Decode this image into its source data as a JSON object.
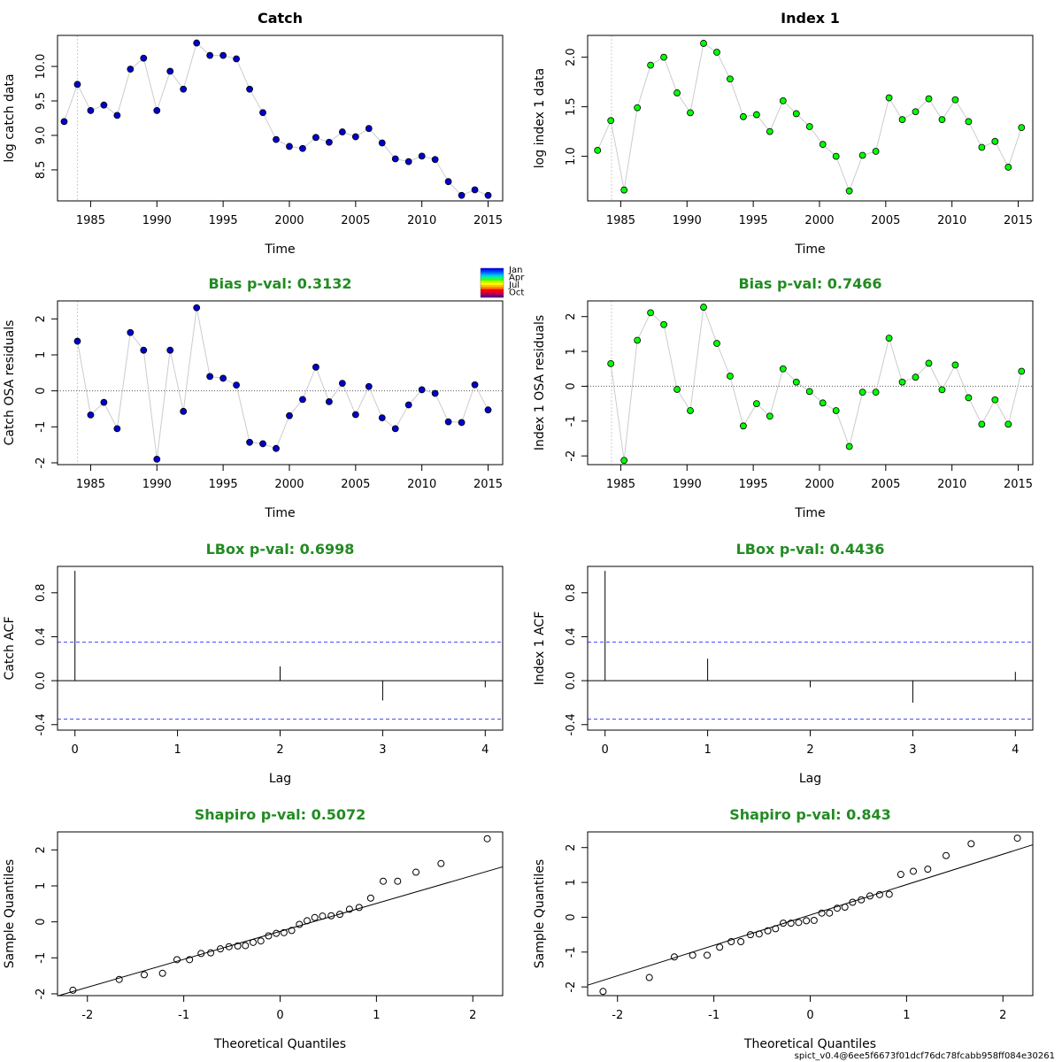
{
  "footer": "spict_v0.4@6ee5f6673f01dcf76dc78fcabb958ff084e30261",
  "month_legend": {
    "labels": [
      "Jan",
      "Apr",
      "Jul",
      "Oct"
    ],
    "colors": [
      "#0000ff",
      "#0040ff",
      "#0080ff",
      "#00c0ff",
      "#00ff80",
      "#40ff00",
      "#c0ff00",
      "#ffff00",
      "#ffc000",
      "#ff8000",
      "#ff0000",
      "#e00030",
      "#a00060",
      "#600080"
    ]
  },
  "chart_data": [
    {
      "id": "catch-data",
      "type": "scatter",
      "title": "Catch",
      "xlabel": "Time",
      "ylabel": "log catch data",
      "xlim": [
        1982.5,
        2016.1
      ],
      "ylim": [
        8.05,
        10.45
      ],
      "xticks": [
        1985,
        1990,
        1995,
        2000,
        2005,
        2010,
        2015
      ],
      "yticks": [
        8.5,
        9.0,
        9.5,
        10.0
      ],
      "ytick_labels": [
        "8.5",
        "9.0",
        "9.5",
        "10.0"
      ],
      "vline": 1984,
      "point_color": "#0000cd",
      "x": [
        1983,
        1984,
        1985,
        1986,
        1987,
        1988,
        1989,
        1990,
        1991,
        1992,
        1993,
        1994,
        1995,
        1996,
        1997,
        1998,
        1999,
        2000,
        2001,
        2002,
        2003,
        2004,
        2005,
        2006,
        2007,
        2008,
        2009,
        2010,
        2011,
        2012,
        2013,
        2014,
        2015
      ],
      "y": [
        9.2,
        9.74,
        9.36,
        9.44,
        9.29,
        9.96,
        10.12,
        9.36,
        9.93,
        9.67,
        10.34,
        10.16,
        10.16,
        10.11,
        9.67,
        9.33,
        8.94,
        8.84,
        8.81,
        8.97,
        8.9,
        9.05,
        8.98,
        9.1,
        8.89,
        8.66,
        8.62,
        8.7,
        8.65,
        8.33,
        8.13,
        8.21,
        8.13
      ]
    },
    {
      "id": "index1-data",
      "type": "scatter",
      "title": "Index 1",
      "xlabel": "Time",
      "ylabel": "log index 1 data",
      "xlim": [
        1982.5,
        2016.1
      ],
      "ylim": [
        0.55,
        2.22
      ],
      "xticks": [
        1985,
        1990,
        1995,
        2000,
        2005,
        2010,
        2015
      ],
      "yticks": [
        1.0,
        1.5,
        2.0
      ],
      "ytick_labels": [
        "1.0",
        "1.5",
        "2.0"
      ],
      "vline": 1984.3,
      "point_color": "#00ff00",
      "x": [
        1983.25,
        1984.25,
        1985.25,
        1986.25,
        1987.25,
        1988.25,
        1989.25,
        1990.25,
        1991.25,
        1992.25,
        1993.25,
        1994.25,
        1995.25,
        1996.25,
        1997.25,
        1998.25,
        1999.25,
        2000.25,
        2001.25,
        2002.25,
        2003.25,
        2004.25,
        2005.25,
        2006.25,
        2007.25,
        2008.25,
        2009.25,
        2010.25,
        2011.25,
        2012.25,
        2013.25,
        2014.25,
        2015.25
      ],
      "y": [
        1.06,
        1.36,
        0.66,
        1.49,
        1.92,
        2.0,
        1.64,
        1.44,
        2.14,
        2.05,
        1.78,
        1.4,
        1.42,
        1.25,
        1.56,
        1.43,
        1.3,
        1.12,
        1.0,
        0.65,
        1.01,
        1.05,
        1.59,
        1.37,
        1.45,
        1.58,
        1.37,
        1.57,
        1.35,
        1.09,
        1.15,
        0.89,
        1.29
      ]
    },
    {
      "id": "catch-osa",
      "type": "scatter",
      "title": "Bias p-val: 0.3132",
      "xlabel": "Time",
      "ylabel": "Catch OSA residuals",
      "xlim": [
        1982.5,
        2016.1
      ],
      "ylim": [
        -2.05,
        2.5
      ],
      "xticks": [
        1985,
        1990,
        1995,
        2000,
        2005,
        2010,
        2015
      ],
      "yticks": [
        -2,
        -1,
        0,
        1,
        2
      ],
      "ytick_labels": [
        "-2",
        "-1",
        "0",
        "1",
        "2"
      ],
      "vline": 1984,
      "hline": 0,
      "point_color": "#0000cd",
      "x": [
        1984,
        1985,
        1986,
        1987,
        1988,
        1989,
        1990,
        1991,
        1992,
        1993,
        1994,
        1995,
        1996,
        1997,
        1998,
        1999,
        2000,
        2001,
        2002,
        2003,
        2004,
        2005,
        2006,
        2007,
        2008,
        2009,
        2010,
        2011,
        2012,
        2013,
        2014,
        2015
      ],
      "y": [
        1.38,
        -0.67,
        -0.32,
        -1.05,
        1.62,
        1.13,
        -1.9,
        1.13,
        -0.57,
        2.31,
        0.4,
        0.35,
        0.16,
        -1.43,
        -1.47,
        -1.6,
        -0.69,
        -0.24,
        0.66,
        -0.3,
        0.21,
        -0.66,
        0.12,
        -0.75,
        -1.05,
        -0.39,
        0.03,
        -0.07,
        -0.86,
        -0.88,
        0.17,
        -0.53
      ]
    },
    {
      "id": "index1-osa",
      "type": "scatter",
      "title": "Bias p-val: 0.7466",
      "xlabel": "Time",
      "ylabel": "Index 1 OSA residuals",
      "xlim": [
        1982.5,
        2016.1
      ],
      "ylim": [
        -2.25,
        2.45
      ],
      "xticks": [
        1985,
        1990,
        1995,
        2000,
        2005,
        2010,
        2015
      ],
      "yticks": [
        -2,
        -1,
        0,
        1,
        2
      ],
      "ytick_labels": [
        "-2",
        "-1",
        "0",
        "1",
        "2"
      ],
      "vline": 1984.3,
      "hline": 0,
      "point_color": "#00ff00",
      "x": [
        1984.25,
        1985.25,
        1986.25,
        1987.25,
        1988.25,
        1989.25,
        1990.25,
        1991.25,
        1992.25,
        1993.25,
        1994.25,
        1995.25,
        1996.25,
        1997.25,
        1998.25,
        1999.25,
        2000.25,
        2001.25,
        2002.25,
        2003.25,
        2004.25,
        2005.25,
        2006.25,
        2007.25,
        2008.25,
        2009.25,
        2010.25,
        2011.25,
        2012.25,
        2013.25,
        2014.25,
        2015.25
      ],
      "y": [
        0.65,
        -2.13,
        1.32,
        2.11,
        1.77,
        -0.09,
        -0.7,
        2.27,
        1.23,
        0.29,
        -1.14,
        -0.5,
        -0.86,
        0.5,
        0.12,
        -0.15,
        -0.48,
        -0.7,
        -1.73,
        -0.17,
        -0.17,
        1.38,
        0.12,
        0.26,
        0.66,
        -0.1,
        0.61,
        -0.33,
        -1.09,
        -0.39,
        -1.09,
        0.43
      ]
    },
    {
      "id": "catch-acf",
      "type": "bar",
      "title": "LBox p-val: 0.6998",
      "xlabel": "Lag",
      "ylabel": "Catch ACF",
      "xlim": [
        -0.17,
        4.17
      ],
      "ylim": [
        -0.45,
        1.04
      ],
      "xticks": [
        0,
        1,
        2,
        3,
        4
      ],
      "yticks": [
        -0.4,
        0.0,
        0.4,
        0.8
      ],
      "ytick_labels": [
        "-0.4",
        "0.0",
        "0.4",
        "0.8"
      ],
      "conf_band": 0.35,
      "lags": [
        0,
        1,
        2,
        3,
        4
      ],
      "values": [
        1.0,
        0.0,
        0.13,
        -0.18,
        -0.06
      ]
    },
    {
      "id": "index1-acf",
      "type": "bar",
      "title": "LBox p-val: 0.4436",
      "xlabel": "Lag",
      "ylabel": "Index 1 ACF",
      "xlim": [
        -0.17,
        4.17
      ],
      "ylim": [
        -0.45,
        1.04
      ],
      "xticks": [
        0,
        1,
        2,
        3,
        4
      ],
      "yticks": [
        -0.4,
        0.0,
        0.4,
        0.8
      ],
      "ytick_labels": [
        "-0.4",
        "0.0",
        "0.4",
        "0.8"
      ],
      "conf_band": 0.35,
      "lags": [
        0,
        1,
        2,
        3,
        4
      ],
      "values": [
        1.0,
        0.2,
        -0.06,
        -0.2,
        0.08
      ]
    },
    {
      "id": "catch-qq",
      "type": "scatter",
      "title": "Shapiro p-val: 0.5072",
      "xlabel": "Theoretical Quantiles",
      "ylabel": "Sample Quantiles",
      "xlim": [
        -2.31,
        2.31
      ],
      "ylim": [
        -2.05,
        2.5
      ],
      "xticks": [
        -2,
        -1,
        0,
        1,
        2
      ],
      "yticks": [
        -2,
        -1,
        0,
        1,
        2
      ],
      "ytick_labels": [
        "-2",
        "-1",
        "0",
        "1",
        "2"
      ],
      "qqline": [
        [
          -2.31,
          -2.06
        ],
        [
          2.31,
          1.53
        ]
      ],
      "x": [
        -2.15,
        -1.67,
        -1.41,
        -1.22,
        -1.07,
        -0.94,
        -0.82,
        -0.72,
        -0.62,
        -0.53,
        -0.44,
        -0.36,
        -0.28,
        -0.2,
        -0.12,
        -0.04,
        0.04,
        0.12,
        0.2,
        0.28,
        0.36,
        0.44,
        0.53,
        0.62,
        0.72,
        0.82,
        0.94,
        1.07,
        1.22,
        1.41,
        1.67,
        2.15
      ],
      "y": [
        -1.9,
        -1.6,
        -1.47,
        -1.43,
        -1.05,
        -1.05,
        -0.88,
        -0.86,
        -0.75,
        -0.69,
        -0.67,
        -0.66,
        -0.57,
        -0.53,
        -0.39,
        -0.32,
        -0.3,
        -0.24,
        -0.07,
        0.03,
        0.12,
        0.16,
        0.17,
        0.21,
        0.35,
        0.4,
        0.66,
        1.13,
        1.13,
        1.38,
        1.62,
        2.31
      ]
    },
    {
      "id": "index1-qq",
      "type": "scatter",
      "title": "Shapiro p-val: 0.843",
      "xlabel": "Theoretical Quantiles",
      "ylabel": "Sample Quantiles",
      "xlim": [
        -2.31,
        2.31
      ],
      "ylim": [
        -2.25,
        2.45
      ],
      "xticks": [
        -2,
        -1,
        0,
        1,
        2
      ],
      "yticks": [
        -2,
        -1,
        0,
        1,
        2
      ],
      "ytick_labels": [
        "-2",
        "-1",
        "0",
        "1",
        "2"
      ],
      "qqline": [
        [
          -2.31,
          -1.95
        ],
        [
          2.31,
          2.08
        ]
      ],
      "x": [
        -2.15,
        -1.67,
        -1.41,
        -1.22,
        -1.07,
        -0.94,
        -0.82,
        -0.72,
        -0.62,
        -0.53,
        -0.44,
        -0.36,
        -0.28,
        -0.2,
        -0.12,
        -0.04,
        0.04,
        0.12,
        0.2,
        0.28,
        0.36,
        0.44,
        0.53,
        0.62,
        0.72,
        0.82,
        0.94,
        1.07,
        1.22,
        1.41,
        1.67,
        2.15
      ],
      "y": [
        -2.13,
        -1.73,
        -1.14,
        -1.09,
        -1.09,
        -0.86,
        -0.7,
        -0.7,
        -0.5,
        -0.48,
        -0.39,
        -0.33,
        -0.17,
        -0.17,
        -0.15,
        -0.1,
        -0.09,
        0.12,
        0.12,
        0.26,
        0.29,
        0.43,
        0.5,
        0.61,
        0.65,
        0.66,
        1.23,
        1.32,
        1.38,
        1.77,
        2.11,
        2.27
      ]
    }
  ]
}
